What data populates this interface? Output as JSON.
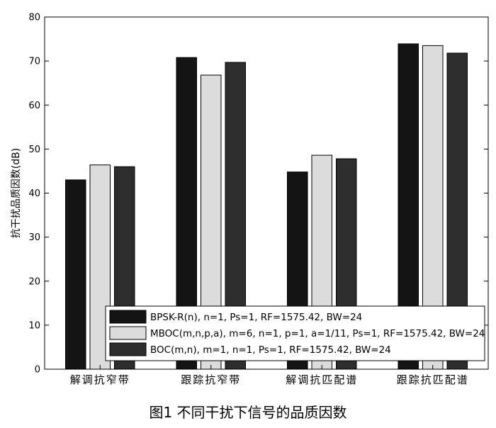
{
  "chart_data": {
    "type": "bar",
    "categories": [
      "解调抗窄带",
      "跟踪抗窄带",
      "解调抗匹配谱",
      "跟踪抗匹配谱"
    ],
    "series": [
      {
        "name": "BPSK-R(n), n=1, Ps=1, RF=1575.42, BW=24",
        "values": [
          43.0,
          70.8,
          44.8,
          73.9
        ],
        "color": "#141414"
      },
      {
        "name": "MBOC(m,n,p,a), m=6, n=1, p=1, a=1/11, Ps=1, RF=1575.42, BW=24",
        "values": [
          46.4,
          66.8,
          48.6,
          73.5
        ],
        "color": "#dcdcdc"
      },
      {
        "name": "BOC(m,n), m=1, n=1, Ps=1, RF=1575.42, BW=24",
        "values": [
          46.0,
          69.7,
          47.8,
          71.8
        ],
        "color": "#2e2e2e"
      }
    ],
    "ylabel": "抗干扰品质因数(dB)",
    "xlabel": "",
    "ylim": [
      0,
      80
    ],
    "yticks": [
      0,
      10,
      20,
      30,
      40,
      50,
      60,
      70,
      80
    ],
    "grid": false,
    "legend_position": "bottom-right"
  },
  "caption": "图1  不同干扰下信号的品质因数"
}
